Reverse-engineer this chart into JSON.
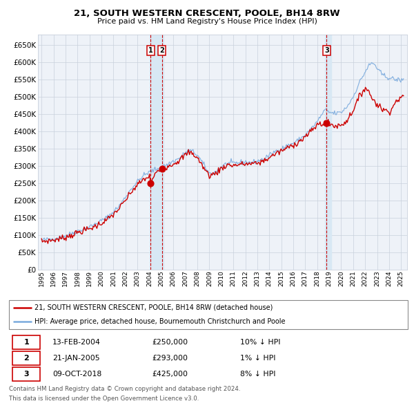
{
  "title": "21, SOUTH WESTERN CRESCENT, POOLE, BH14 8RW",
  "subtitle": "Price paid vs. HM Land Registry's House Price Index (HPI)",
  "legend_line1": "21, SOUTH WESTERN CRESCENT, POOLE, BH14 8RW (detached house)",
  "legend_line2": "HPI: Average price, detached house, Bournemouth Christchurch and Poole",
  "footer1": "Contains HM Land Registry data © Crown copyright and database right 2024.",
  "footer2": "This data is licensed under the Open Government Licence v3.0.",
  "transactions": [
    {
      "num": 1,
      "date": "13-FEB-2004",
      "price": 250000,
      "hpi_diff": "10% ↓ HPI",
      "x_year": 2004.11
    },
    {
      "num": 2,
      "date": "21-JAN-2005",
      "price": 293000,
      "hpi_diff": "1% ↓ HPI",
      "x_year": 2005.06
    },
    {
      "num": 3,
      "date": "09-OCT-2018",
      "price": 425000,
      "hpi_diff": "8% ↓ HPI",
      "x_year": 2018.78
    }
  ],
  "ylim": [
    0,
    680000
  ],
  "xlim_start": 1994.7,
  "xlim_end": 2025.5,
  "plot_bg_color": "#eef2f8",
  "grid_color": "#c8d0dc",
  "red_line_color": "#cc0000",
  "blue_line_color": "#7aaadd",
  "sale_marker_color": "#cc0000",
  "vline_color": "#cc0000",
  "highlight_color": "#d8e8f4"
}
